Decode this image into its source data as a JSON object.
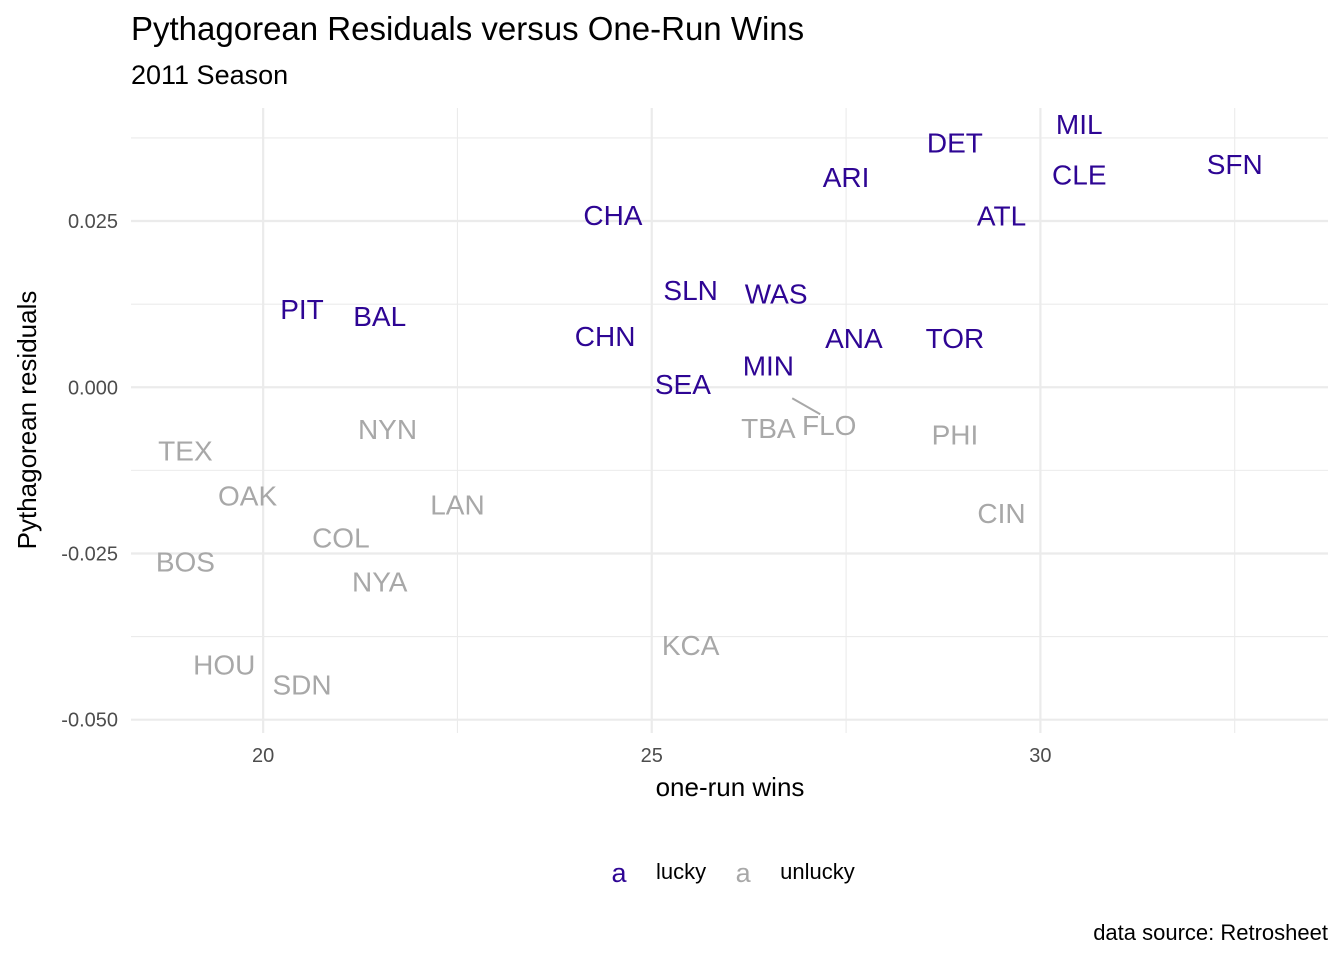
{
  "chart_data": {
    "type": "scatter",
    "title": "Pythagorean Residuals versus One-Run Wins",
    "subtitle": "2011 Season",
    "xlabel": "one-run wins",
    "ylabel": "Pythagorean residuals",
    "caption": "data source: Retrosheet",
    "xlim": [
      18.3,
      33.7
    ],
    "ylim": [
      -0.052,
      0.042
    ],
    "x_ticks": [
      20,
      25,
      30
    ],
    "x_tick_labels": [
      "20",
      "25",
      "30"
    ],
    "y_ticks": [
      -0.05,
      -0.025,
      0,
      0.025
    ],
    "y_tick_labels": [
      "-0.050",
      "-0.025",
      "0.000",
      "0.025"
    ],
    "grid": true,
    "legend": {
      "placement": "bottom",
      "key_glyph": "a",
      "entries": [
        {
          "label": "lucky",
          "color": "#2e0594"
        },
        {
          "label": "unlucky",
          "color": "#a8a8a8"
        }
      ]
    },
    "points": [
      {
        "team": "MIL",
        "x": 30.5,
        "y": 0.0396,
        "group": "lucky"
      },
      {
        "team": "DET",
        "x": 28.9,
        "y": 0.0368,
        "group": "lucky"
      },
      {
        "team": "SFN",
        "x": 32.5,
        "y": 0.0336,
        "group": "lucky"
      },
      {
        "team": "ARI",
        "x": 27.5,
        "y": 0.0316,
        "group": "lucky"
      },
      {
        "team": "CLE",
        "x": 30.5,
        "y": 0.032,
        "group": "lucky"
      },
      {
        "team": "CHA",
        "x": 24.5,
        "y": 0.0259,
        "group": "lucky"
      },
      {
        "team": "ATL",
        "x": 29.5,
        "y": 0.0258,
        "group": "lucky"
      },
      {
        "team": "SLN",
        "x": 25.5,
        "y": 0.0146,
        "group": "lucky"
      },
      {
        "team": "WAS",
        "x": 26.6,
        "y": 0.0141,
        "group": "lucky"
      },
      {
        "team": "PIT",
        "x": 20.5,
        "y": 0.0118,
        "group": "lucky"
      },
      {
        "team": "BAL",
        "x": 21.5,
        "y": 0.0107,
        "group": "lucky"
      },
      {
        "team": "CHN",
        "x": 24.4,
        "y": 0.0077,
        "group": "lucky"
      },
      {
        "team": "ANA",
        "x": 27.6,
        "y": 0.0074,
        "group": "lucky"
      },
      {
        "team": "TOR",
        "x": 28.9,
        "y": 0.0074,
        "group": "lucky"
      },
      {
        "team": "MIN",
        "x": 26.5,
        "y": 0.0033,
        "group": "lucky"
      },
      {
        "team": "SEA",
        "x": 25.4,
        "y": 0.0005,
        "group": "lucky"
      },
      {
        "team": "TEX",
        "x": 19.0,
        "y": -0.0095,
        "group": "unlucky"
      },
      {
        "team": "NYN",
        "x": 21.6,
        "y": -0.0063,
        "group": "unlucky"
      },
      {
        "team": "TBA",
        "x": 26.5,
        "y": -0.0061,
        "group": "unlucky"
      },
      {
        "team": "FLO",
        "x": 27.0,
        "y": -0.003,
        "group": "unlucky"
      },
      {
        "team": "PHI",
        "x": 28.9,
        "y": -0.0071,
        "group": "unlucky"
      },
      {
        "team": "OAK",
        "x": 19.8,
        "y": -0.0163,
        "group": "unlucky"
      },
      {
        "team": "LAN",
        "x": 22.5,
        "y": -0.0176,
        "group": "unlucky"
      },
      {
        "team": "CIN",
        "x": 29.5,
        "y": -0.0189,
        "group": "unlucky"
      },
      {
        "team": "COL",
        "x": 21.0,
        "y": -0.0226,
        "group": "unlucky"
      },
      {
        "team": "BOS",
        "x": 19.0,
        "y": -0.0262,
        "group": "unlucky"
      },
      {
        "team": "NYA",
        "x": 21.5,
        "y": -0.0292,
        "group": "unlucky"
      },
      {
        "team": "KCA",
        "x": 25.5,
        "y": -0.0388,
        "group": "unlucky"
      },
      {
        "team": "HOU",
        "x": 19.5,
        "y": -0.0417,
        "group": "unlucky"
      },
      {
        "team": "SDN",
        "x": 20.5,
        "y": -0.0447,
        "group": "unlucky"
      }
    ]
  }
}
